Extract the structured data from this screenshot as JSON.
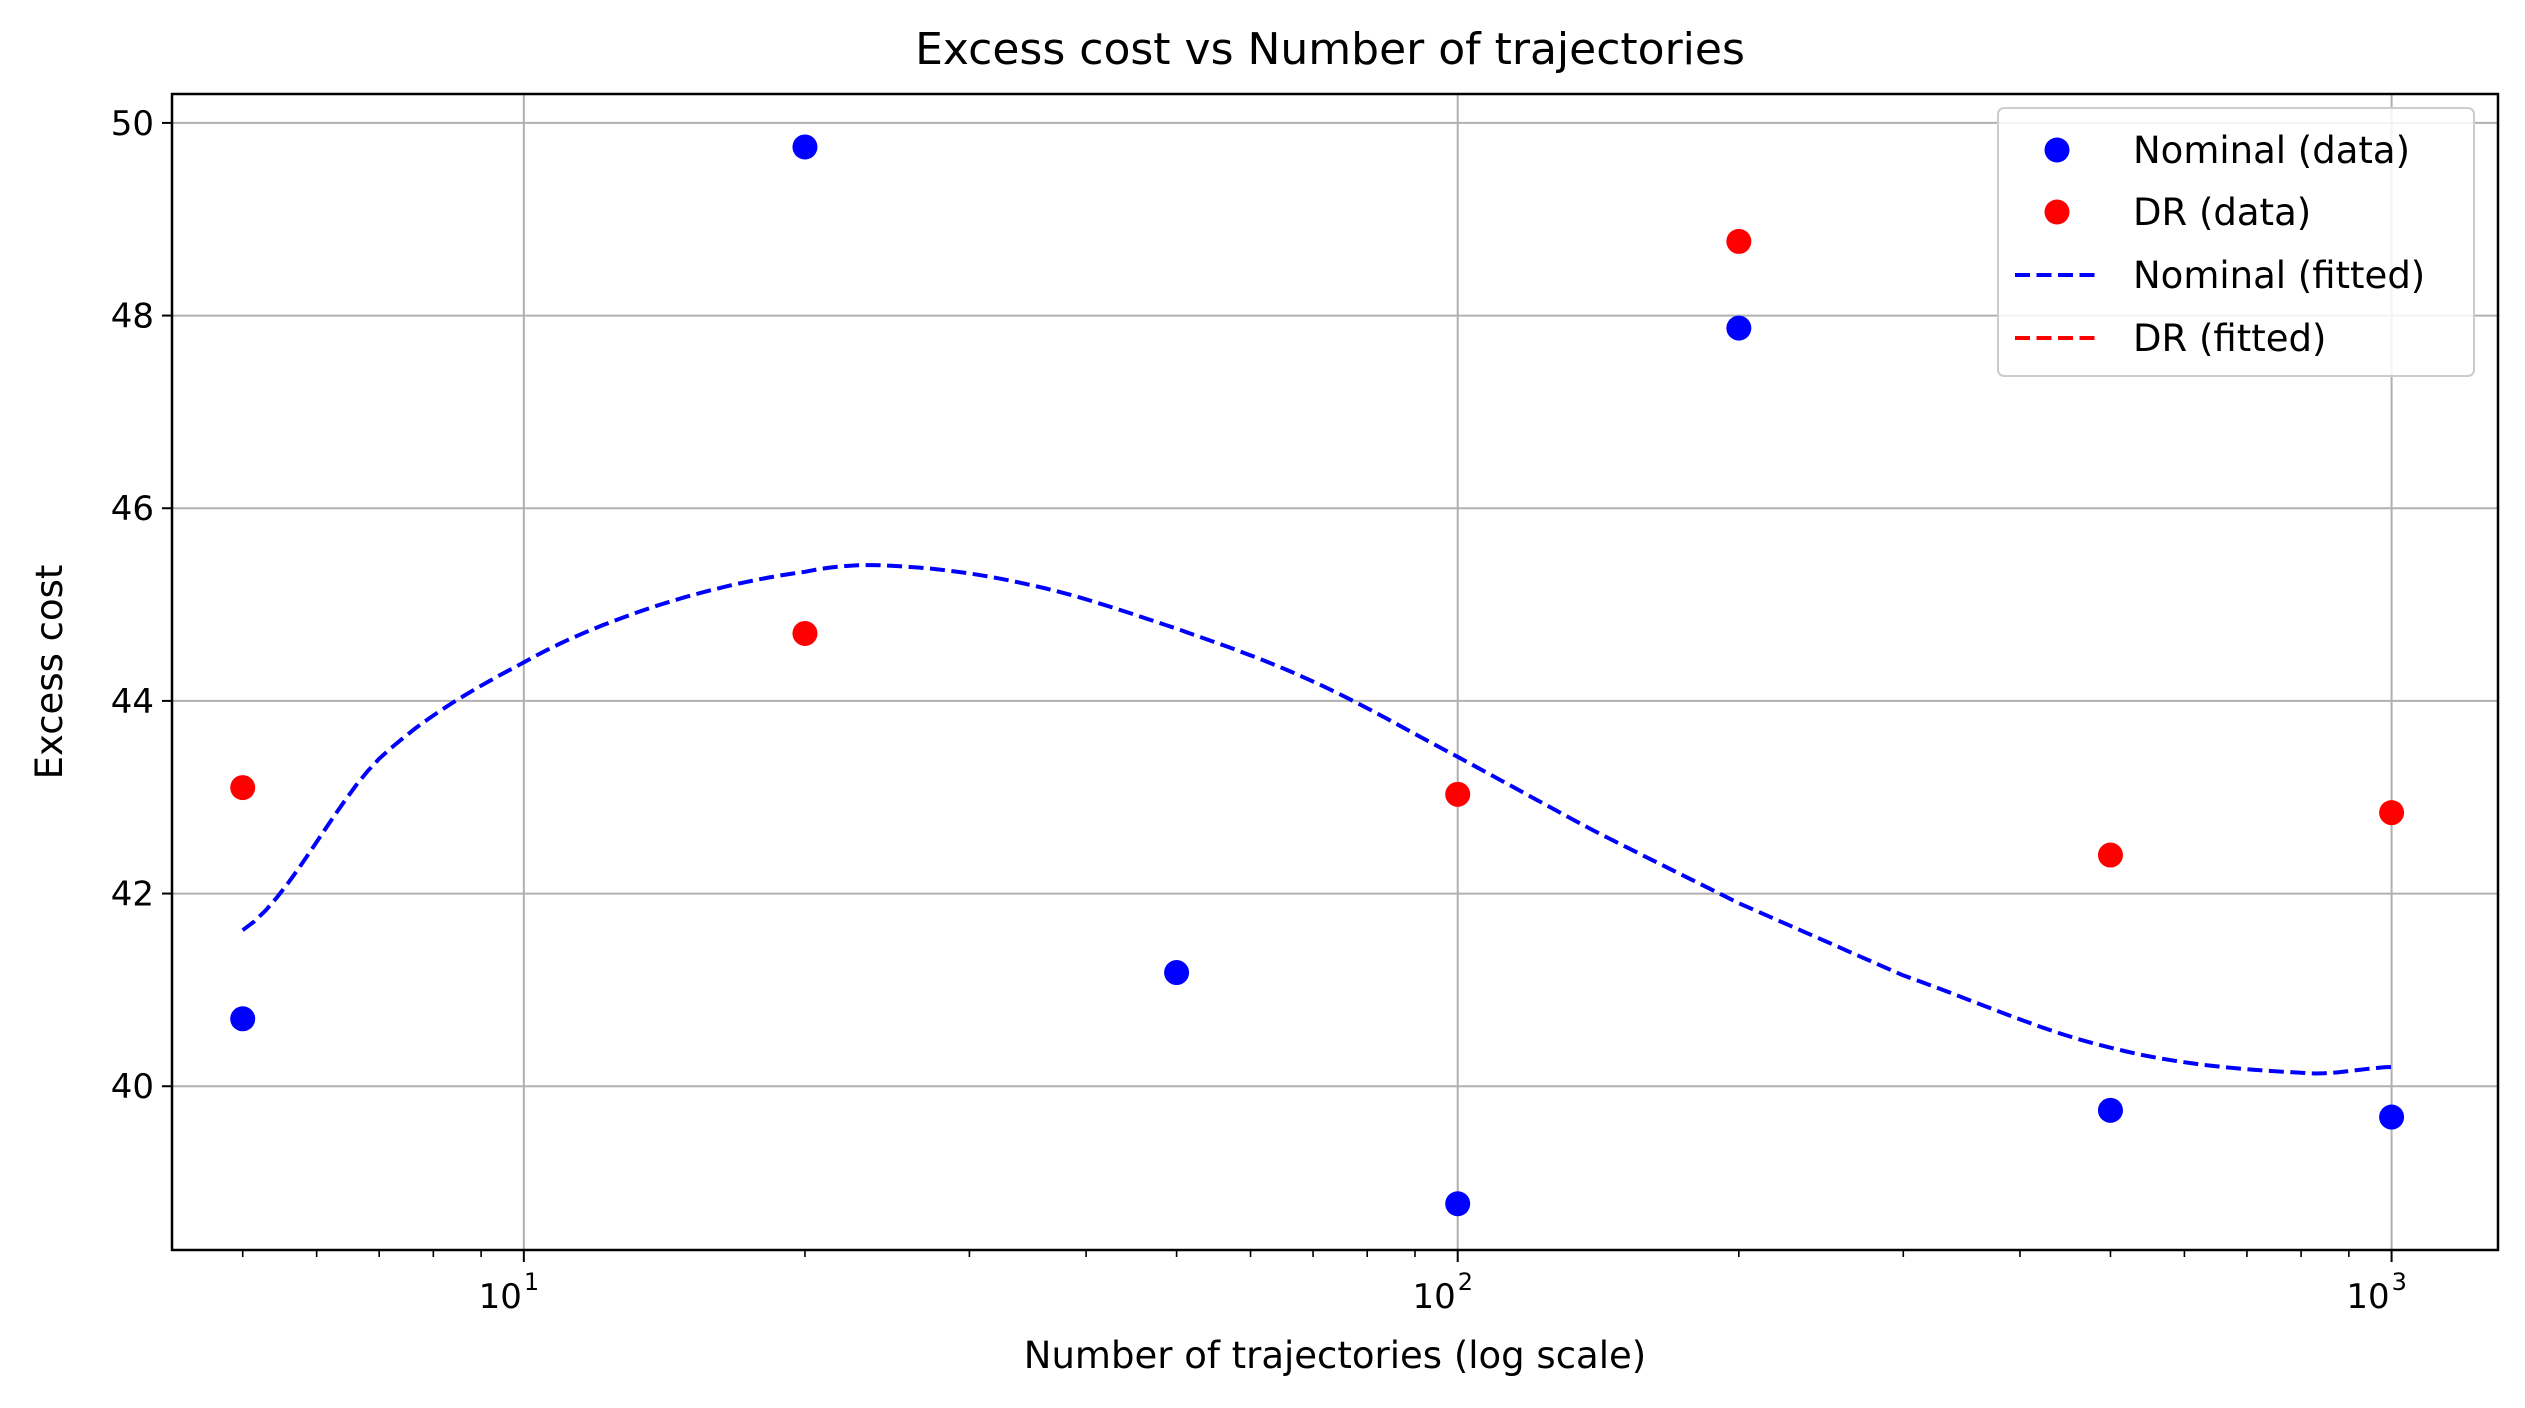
{
  "chart_data": {
    "type": "scatter",
    "title": "Excess cost vs Number of trajectories",
    "xlabel": "Number of trajectories (log scale)",
    "ylabel": "Excess cost",
    "xscale": "log",
    "xlim": [
      4.2,
      1300
    ],
    "ylim": [
      38.3,
      50.3
    ],
    "grid": true,
    "legend_position": "top-right",
    "x_ticks": [
      {
        "value": 10,
        "base": "10",
        "exp": "1"
      },
      {
        "value": 100,
        "base": "10",
        "exp": "2"
      },
      {
        "value": 1000,
        "base": "10",
        "exp": "3"
      }
    ],
    "y_ticks": [
      40,
      42,
      44,
      46,
      48,
      50
    ],
    "series": [
      {
        "name": "Nominal (data)",
        "kind": "scatter",
        "color": "#0000ff",
        "x": [
          5,
          20,
          50,
          100,
          200,
          500,
          1000
        ],
        "y": [
          40.7,
          49.75,
          41.18,
          38.78,
          47.87,
          39.75,
          39.68
        ]
      },
      {
        "name": "DR (data)",
        "kind": "scatter",
        "color": "#ff0000",
        "x": [
          5,
          20,
          100,
          200,
          500,
          1000
        ],
        "y": [
          43.1,
          44.7,
          43.03,
          48.77,
          42.4,
          42.84
        ]
      },
      {
        "name": "Nominal (fitted)",
        "kind": "line",
        "style": "dashed",
        "color": "#0000ff",
        "x": [
          5,
          7,
          10,
          14,
          20,
          25,
          35,
          50,
          70,
          100,
          140,
          200,
          300,
          500,
          800,
          1000
        ],
        "y": [
          41.62,
          43.4,
          44.4,
          45.0,
          45.34,
          45.4,
          45.2,
          44.75,
          44.2,
          43.42,
          42.65,
          41.9,
          41.15,
          40.4,
          40.14,
          40.2
        ]
      },
      {
        "name": "DR (fitted)",
        "kind": "line",
        "style": "dashed",
        "color": "#ff0000",
        "x": [],
        "y": []
      }
    ]
  }
}
